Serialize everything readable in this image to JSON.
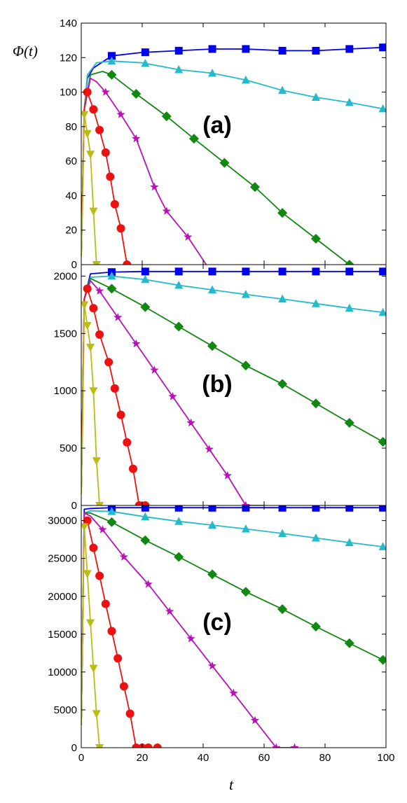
{
  "chart_data": {
    "type": "line",
    "ylabel": "Φ(t)",
    "xlabel": "t",
    "xlim": [
      0,
      100
    ],
    "x_ticks": [
      "0",
      "20",
      "40",
      "60",
      "80",
      "100"
    ],
    "colors": {
      "blue": "#0000ee",
      "cyan": "#22bbcc",
      "green": "#118811",
      "magenta": "#bb11bb",
      "red": "#ee1111",
      "yellow": "#bbbb11"
    },
    "panels": [
      {
        "label": "(a)",
        "ylim": [
          0,
          140
        ],
        "y_ticks": [
          "0",
          "20",
          "40",
          "60",
          "80",
          "100",
          "120",
          "140"
        ],
        "series": [
          {
            "color": "blue",
            "marker": "square",
            "x": [
              0,
              1,
              2,
              4,
              10,
              20,
              32,
              43,
              54,
              66,
              77,
              88,
              100
            ],
            "y": [
              5,
              90,
              108,
              114,
              121,
              123,
              124,
              125,
              125,
              124,
              124,
              125,
              126
            ],
            "marker_x": [
              10,
              21,
              32,
              43,
              54,
              66,
              77,
              88,
              99
            ]
          },
          {
            "color": "cyan",
            "marker": "triangle-up",
            "x": [
              0,
              1,
              2,
              5,
              10,
              20,
              32,
              43,
              54,
              66,
              77,
              88,
              100
            ],
            "y": [
              5,
              90,
              110,
              117,
              118,
              117,
              113,
              111,
              107,
              101,
              97,
              94,
              90
            ],
            "marker_x": [
              10,
              21,
              32,
              43,
              54,
              66,
              77,
              88,
              99
            ]
          },
          {
            "color": "green",
            "marker": "diamond",
            "x": [
              0,
              1,
              3,
              7,
              10,
              18,
              28,
              37,
              47,
              57,
              66,
              77,
              88
            ],
            "y": [
              5,
              90,
              110,
              112,
              110,
              99,
              86,
              73,
              59,
              45,
              30,
              15,
              0
            ],
            "marker_x": [
              10,
              18,
              28,
              37,
              47,
              57,
              66,
              77,
              88
            ]
          },
          {
            "color": "magenta",
            "marker": "star",
            "x": [
              0,
              1,
              3,
              5,
              8,
              13,
              18,
              24,
              28,
              35,
              41
            ],
            "y": [
              5,
              90,
              108,
              106,
              100,
              87,
              73,
              45,
              31,
              16,
              0
            ],
            "marker_x": [
              8,
              13,
              18,
              24,
              28,
              35
            ]
          },
          {
            "color": "red",
            "marker": "circle",
            "x": [
              0,
              1,
              2,
              4,
              6,
              8,
              9.5,
              11,
              13,
              15
            ],
            "y": [
              5,
              90,
              100,
              90,
              78,
              65,
              51,
              35,
              21,
              0
            ],
            "marker_x": [
              2,
              4,
              6,
              8,
              9.5,
              11,
              13,
              15
            ]
          },
          {
            "color": "yellow",
            "marker": "triangle-down",
            "x": [
              0,
              0.5,
              1,
              2,
              3,
              4,
              5
            ],
            "y": [
              5,
              40,
              87,
              76,
              64,
              31,
              0
            ],
            "marker_x": [
              1,
              2,
              3,
              4,
              5
            ]
          }
        ]
      },
      {
        "label": "(b)",
        "ylim": [
          0,
          2100
        ],
        "y_ticks": [
          "0",
          "500",
          "1000",
          "1500",
          "2000"
        ],
        "series": [
          {
            "color": "blue",
            "marker": "square",
            "x": [
              0,
              1,
              3,
              10,
              20,
              32,
              43,
              54,
              66,
              77,
              88,
              100
            ],
            "y": [
              100,
              1800,
              2020,
              2035,
              2040,
              2040,
              2040,
              2040,
              2040,
              2040,
              2040,
              2040
            ],
            "marker_x": [
              10,
              21,
              32,
              43,
              54,
              66,
              77,
              88,
              99
            ]
          },
          {
            "color": "cyan",
            "marker": "triangle-up",
            "x": [
              0,
              1,
              3,
              10,
              21,
              32,
              43,
              54,
              66,
              77,
              88,
              100
            ],
            "y": [
              100,
              1800,
              1990,
              2000,
              1970,
              1920,
              1880,
              1840,
              1800,
              1760,
              1720,
              1680
            ],
            "marker_x": [
              10,
              21,
              32,
              43,
              54,
              66,
              77,
              88,
              99
            ]
          },
          {
            "color": "green",
            "marker": "diamond",
            "x": [
              0,
              1,
              3,
              10,
              21,
              32,
              43,
              54,
              66,
              77,
              88,
              100
            ],
            "y": [
              100,
              1800,
              1980,
              1890,
              1730,
              1560,
              1390,
              1220,
              1060,
              890,
              720,
              540
            ],
            "marker_x": [
              10,
              21,
              32,
              43,
              54,
              66,
              77,
              88,
              99
            ]
          },
          {
            "color": "magenta",
            "marker": "star",
            "x": [
              0,
              1,
              3,
              6,
              12,
              18,
              24,
              30,
              36,
              42,
              48,
              54,
              60
            ],
            "y": [
              100,
              1800,
              1960,
              1870,
              1640,
              1410,
              1180,
              950,
              720,
              490,
              260,
              0,
              0
            ],
            "marker_x": [
              6,
              12,
              18,
              24,
              30,
              36,
              42,
              48,
              54
            ]
          },
          {
            "color": "red",
            "marker": "circle",
            "x": [
              0,
              1,
              2,
              4,
              6,
              9,
              11,
              13,
              15,
              17,
              19,
              21
            ],
            "y": [
              100,
              1800,
              1890,
              1720,
              1490,
              1250,
              1020,
              790,
              550,
              320,
              0,
              0
            ],
            "marker_x": [
              2,
              4,
              6,
              9,
              11,
              13,
              15,
              17,
              19,
              21
            ]
          },
          {
            "color": "yellow",
            "marker": "triangle-down",
            "x": [
              0,
              0.5,
              1,
              2,
              3,
              4,
              5,
              6
            ],
            "y": [
              100,
              780,
              1750,
              1570,
              1380,
              1000,
              390,
              0
            ],
            "marker_x": [
              1,
              2,
              3,
              4,
              5,
              6
            ]
          }
        ]
      },
      {
        "label": "(c)",
        "ylim": [
          0,
          32000
        ],
        "y_ticks": [
          "0",
          "5000",
          "10000",
          "15000",
          "20000",
          "25000",
          "30000"
        ],
        "series": [
          {
            "color": "blue",
            "marker": "square",
            "x": [
              0,
              1,
              3,
              10,
              20,
              32,
              43,
              54,
              66,
              77,
              88,
              100
            ],
            "y": [
              3000,
              31500,
              31600,
              31700,
              31700,
              31700,
              31700,
              31700,
              31700,
              31700,
              31700,
              31700
            ],
            "marker_x": [
              10,
              21,
              32,
              43,
              54,
              66,
              77,
              88,
              99
            ]
          },
          {
            "color": "cyan",
            "marker": "triangle-up",
            "x": [
              0,
              1,
              3,
              10,
              21,
              32,
              43,
              54,
              66,
              77,
              88,
              100
            ],
            "y": [
              3000,
              31000,
              31300,
              31200,
              30500,
              29900,
              29400,
              28900,
              28300,
              27700,
              27100,
              26500
            ],
            "marker_x": [
              10,
              21,
              32,
              43,
              54,
              66,
              77,
              88,
              99
            ]
          },
          {
            "color": "green",
            "marker": "diamond",
            "x": [
              0,
              1,
              3,
              10,
              21,
              32,
              43,
              54,
              66,
              77,
              88,
              100
            ],
            "y": [
              3000,
              31000,
              31000,
              29800,
              27400,
              25200,
              22900,
              20600,
              18300,
              16000,
              13800,
              11400
            ],
            "marker_x": [
              10,
              21,
              32,
              43,
              54,
              66,
              77,
              88,
              99
            ]
          },
          {
            "color": "magenta",
            "marker": "star",
            "x": [
              0,
              1,
              3,
              7,
              14,
              22,
              29,
              36,
              43,
              50,
              57,
              64,
              70
            ],
            "y": [
              3000,
              31000,
              30600,
              28800,
              25200,
              21600,
              18000,
              14400,
              10800,
              7200,
              3600,
              0,
              0
            ],
            "marker_x": [
              7,
              14,
              22,
              29,
              36,
              43,
              50,
              57,
              64,
              70
            ]
          },
          {
            "color": "red",
            "marker": "circle",
            "x": [
              0,
              1,
              2,
              4,
              6,
              8,
              10,
              12,
              14,
              16,
              18,
              20,
              22,
              25
            ],
            "y": [
              3000,
              30000,
              30000,
              26400,
              22700,
              19000,
              15400,
              11800,
              8100,
              4500,
              0,
              0,
              0,
              0
            ],
            "marker_x": [
              2,
              4,
              6,
              8,
              10,
              12,
              14,
              16,
              18,
              20,
              22,
              25
            ]
          },
          {
            "color": "yellow",
            "marker": "triangle-down",
            "x": [
              0,
              0.5,
              1,
              2,
              3,
              4,
              5,
              6
            ],
            "y": [
              3000,
              17500,
              29200,
              23000,
              16500,
              10500,
              4500,
              0
            ],
            "marker_x": [
              1,
              2,
              3,
              4,
              5,
              6
            ]
          }
        ]
      }
    ]
  }
}
